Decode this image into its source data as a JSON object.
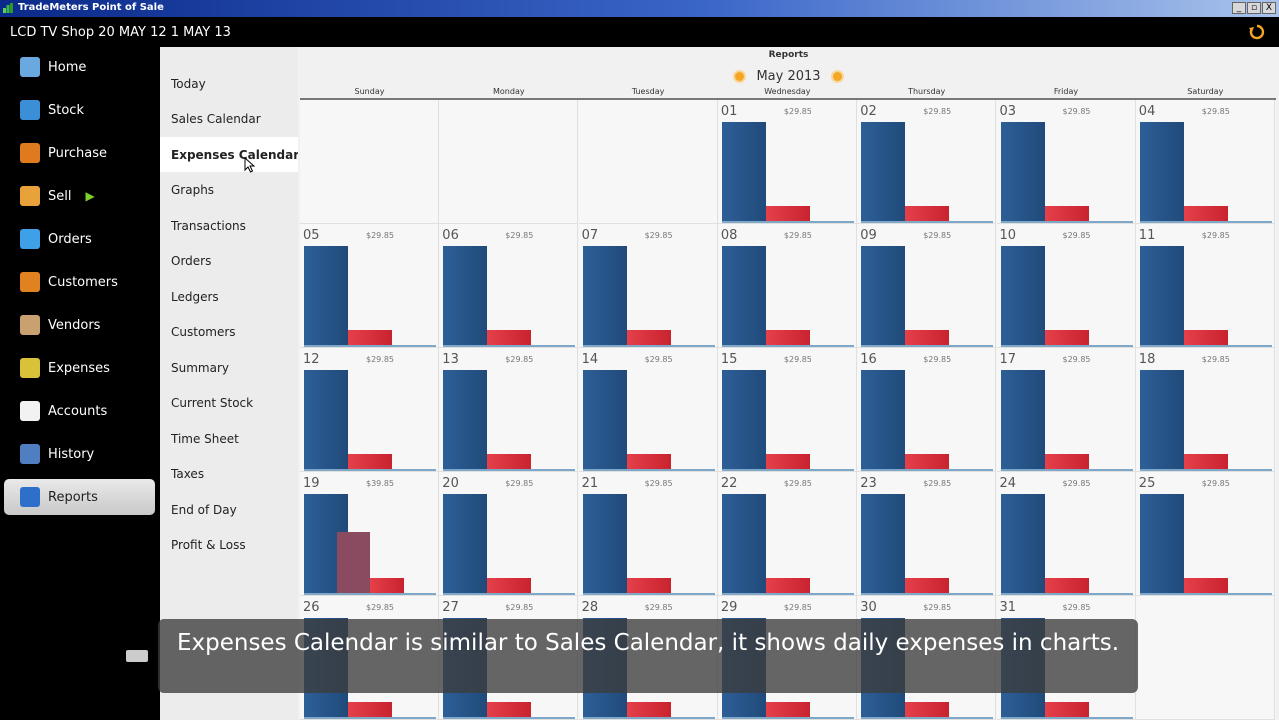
{
  "window": {
    "title": "TradeMeters Point of Sale",
    "min": "_",
    "max": "▫",
    "close": "X"
  },
  "header": {
    "shop_info": "LCD TV Shop 20 MAY 12 1 MAY 13"
  },
  "nav": {
    "items": [
      {
        "label": "Home",
        "icon": "home-icon",
        "color": "#6aa8e0"
      },
      {
        "label": "Stock",
        "icon": "stock-icon",
        "color": "#3b8fd6"
      },
      {
        "label": "Purchase",
        "icon": "purchase-basket-icon",
        "color": "#e07a1f"
      },
      {
        "label": "Sell",
        "icon": "sell-icon",
        "color": "#e8a23a"
      },
      {
        "label": "Orders",
        "icon": "orders-arrow-icon",
        "color": "#3ea0e8"
      },
      {
        "label": "Customers",
        "icon": "customers-icon",
        "color": "#e0821f"
      },
      {
        "label": "Vendors",
        "icon": "vendors-icon",
        "color": "#c9a070"
      },
      {
        "label": "Expenses",
        "icon": "expenses-icon",
        "color": "#d9c23a"
      },
      {
        "label": "Accounts",
        "icon": "accounts-icon",
        "color": "#f2f2f2"
      },
      {
        "label": "History",
        "icon": "history-clock-icon",
        "color": "#4f7fc0"
      },
      {
        "label": "Reports",
        "icon": "reports-chart-icon",
        "color": "#2e6fc9"
      }
    ],
    "sell_play": "▶",
    "active": "Reports"
  },
  "reports_menu": {
    "items": [
      "Today",
      "Sales Calendar",
      "Expenses Calendar",
      "Graphs",
      "Transactions",
      "Orders",
      "Ledgers",
      "Customers",
      "Summary",
      "Current Stock",
      "Time Sheet",
      "Taxes",
      "End of Day",
      "Profit & Loss"
    ],
    "active": "Expenses Calendar"
  },
  "content": {
    "header": "Reports",
    "month": "May 2013",
    "weekdays": [
      "Sunday",
      "Monday",
      "Tuesday",
      "Wednesday",
      "Thursday",
      "Friday",
      "Saturday"
    ]
  },
  "calendar": {
    "days": [
      {
        "day": "01",
        "amount": "$29.85"
      },
      {
        "day": "02",
        "amount": "$29.85"
      },
      {
        "day": "03",
        "amount": "$29.85"
      },
      {
        "day": "04",
        "amount": "$29.85"
      },
      {
        "day": "05",
        "amount": "$29.85"
      },
      {
        "day": "06",
        "amount": "$29.85"
      },
      {
        "day": "07",
        "amount": "$29.85"
      },
      {
        "day": "08",
        "amount": "$29.85"
      },
      {
        "day": "09",
        "amount": "$29.85"
      },
      {
        "day": "10",
        "amount": "$29.85"
      },
      {
        "day": "11",
        "amount": "$29.85"
      },
      {
        "day": "12",
        "amount": "$29.85"
      },
      {
        "day": "13",
        "amount": "$29.85"
      },
      {
        "day": "14",
        "amount": "$29.85"
      },
      {
        "day": "15",
        "amount": "$29.85"
      },
      {
        "day": "16",
        "amount": "$29.85"
      },
      {
        "day": "17",
        "amount": "$29.85"
      },
      {
        "day": "18",
        "amount": "$29.85"
      },
      {
        "day": "19",
        "amount": "$39.85"
      },
      {
        "day": "20",
        "amount": "$29.85"
      },
      {
        "day": "21",
        "amount": "$29.85"
      },
      {
        "day": "22",
        "amount": "$29.85"
      },
      {
        "day": "23",
        "amount": "$29.85"
      },
      {
        "day": "24",
        "amount": "$29.85"
      },
      {
        "day": "25",
        "amount": "$29.85"
      },
      {
        "day": "26",
        "amount": "$29.85"
      },
      {
        "day": "27",
        "amount": "$29.85"
      },
      {
        "day": "28",
        "amount": "$29.85"
      },
      {
        "day": "29",
        "amount": "$29.85"
      },
      {
        "day": "30",
        "amount": "$29.85"
      },
      {
        "day": "31",
        "amount": "$29.85"
      }
    ],
    "first_weekday": 3,
    "extra_purple_bar_day": "19",
    "colors": {
      "blue": "#2d5f97",
      "red": "#e5404a",
      "purple": "#8a4a60"
    }
  },
  "subtitle": "Expenses Calendar is similar to Sales Calendar, it shows daily expenses in charts."
}
